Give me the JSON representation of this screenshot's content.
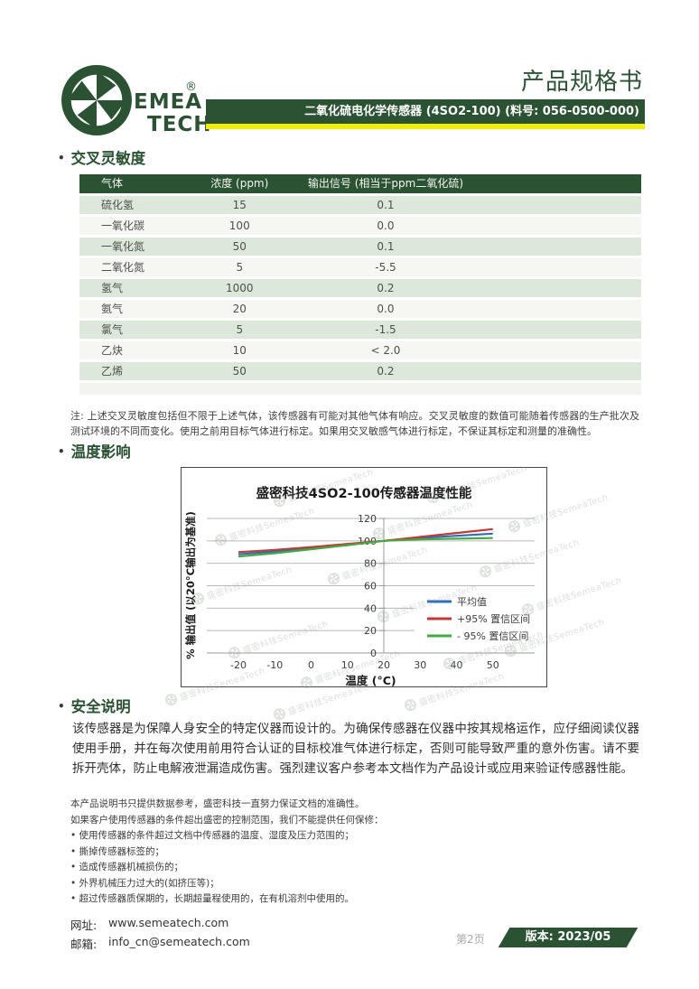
{
  "header": {
    "doc_title": "产品规格书",
    "product_bar": "二氧化硫电化学传感器 (4SO2-100) (料号: 056-0500-000)",
    "logo": {
      "word1": "EMEA",
      "word2": "TECH",
      "reg": "®"
    }
  },
  "sections": {
    "bullet": "•",
    "cross_sensitivity": "交叉灵敏度",
    "temperature": "温度影响",
    "safety": "安全说明"
  },
  "table": {
    "headers": [
      "气体",
      "浓度 (ppm)",
      "输出信号 (相当于ppm二氧化硫)"
    ],
    "rows": [
      [
        "硫化氢",
        "15",
        "0.1"
      ],
      [
        "一氧化碳",
        "100",
        "0.0"
      ],
      [
        "一氧化氮",
        "50",
        "0.1"
      ],
      [
        "二氧化氮",
        "5",
        "-5.5"
      ],
      [
        "氢气",
        "1000",
        "0.2"
      ],
      [
        "氨气",
        "20",
        "0.0"
      ],
      [
        "氯气",
        "5",
        "-1.5"
      ],
      [
        "乙炔",
        "10",
        "< 2.0"
      ],
      [
        "乙烯",
        "50",
        "0.2"
      ]
    ]
  },
  "note": "注: 上述交叉灵敏度包括但不限于上述气体，该传感器有可能对其他气体有响应。交叉灵敏度的数值可能随着传感器的生产批次及测试环境的不同而变化。使用之前用目标气体进行标定。如果用交叉敏感气体进行标定，不保证其标定和测量的准确性。",
  "chart_data": {
    "type": "line",
    "title": "盛密科技4SO2-100传感器温度性能",
    "xlabel": "温度 (°C)",
    "ylabel": "% 输出值 (以20°C输出为基准)",
    "x": [
      -20,
      -10,
      0,
      10,
      20,
      30,
      40,
      50
    ],
    "series": [
      {
        "name": "平均值",
        "color": "#2e6db8",
        "values": [
          88.0,
          90.5,
          93.5,
          96.8,
          100,
          102.5,
          104.5,
          106.5
        ]
      },
      {
        "name": "+95% 置信区间",
        "color": "#c23a32",
        "values": [
          90.0,
          92.0,
          94.5,
          97.3,
          100,
          103.5,
          107.0,
          110.5
        ]
      },
      {
        "name": "- 95% 置信区间",
        "color": "#43a943",
        "values": [
          86.0,
          89.0,
          92.5,
          96.2,
          100,
          101.3,
          102.0,
          102.5
        ]
      }
    ],
    "xlim": [
      -28.7,
      61.5
    ],
    "ylim": [
      0,
      120
    ],
    "xticks": [
      -20,
      -10,
      0,
      10,
      20,
      30,
      40,
      50
    ],
    "yticks": [
      0,
      20,
      40,
      60,
      80,
      100,
      120
    ],
    "axis_cross_x": 20,
    "grid": true,
    "legend_position": "middle-right"
  },
  "safety_text": "该传感器是为保障人身安全的特定仪器而设计的。为确保传感器在仪器中按其规格运作，应仔细阅读仪器使用手册，并在每次使用前用符合认证的目标校准气体进行标定，否则可能导致严重的意外伤害。请不要拆开壳体，防止电解液泄漏造成伤害。强烈建议客户参考本文档作为产品设计或应用来验证传感器性能。",
  "disclaimer": {
    "line1": "本产品说明书只提供数据参考，盛密科技一直努力保证文档的准确性。",
    "line2": "如果客户使用传感器的条件超出盛密的控制范围，我们不能提供任何保修：",
    "bullets": [
      "使用传感器的条件超过文档中传感器的温度、湿度及压力范围的；",
      "撕掉传感器标签的；",
      "造成传感器机械损伤的；",
      "外界机械压力过大的(如挤压等)；",
      "超过传感器质保期的，长期超量程使用的，在有机溶剂中使用的。"
    ]
  },
  "footer": {
    "site_label": "网址:",
    "site": "www.semeatech.com",
    "email_label": "邮箱:",
    "email": "info_cn@semeatech.com",
    "page_number": "第2页",
    "version": "版本: 2023/05"
  },
  "watermark": {
    "text": "盛密科技SemeaTech"
  },
  "colors": {
    "brand_green": "#2b5233",
    "accent_yellow": "#f2ee00",
    "row_green": "#dce8d9",
    "row_gray": "#f6f6f3",
    "line_blue": "#2e6db8",
    "line_red": "#c23a32",
    "line_green": "#43a943"
  }
}
